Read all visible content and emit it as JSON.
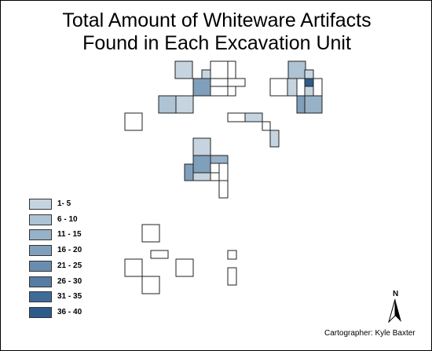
{
  "map": {
    "title_line1": "Total Amount of Whiteware Artifacts",
    "title_line2": "Found in Each Excavation Unit",
    "cartographer": "Cartographer: Kyle Baxter",
    "north_label": "N",
    "north_icon": "north-arrow-icon"
  },
  "legend": {
    "classes": [
      {
        "label": "1- 5",
        "color": "#c6d4df"
      },
      {
        "label": "6 - 10",
        "color": "#aec3d3"
      },
      {
        "label": "11 - 15",
        "color": "#97b1c7"
      },
      {
        "label": "16 - 20",
        "color": "#809fbb"
      },
      {
        "label": "21 - 25",
        "color": "#6a8daf"
      },
      {
        "label": "26 - 30",
        "color": "#557ca4"
      },
      {
        "label": "31 - 35",
        "color": "#406b98"
      },
      {
        "label": "36 - 40",
        "color": "#2e5b8b"
      }
    ]
  }
}
